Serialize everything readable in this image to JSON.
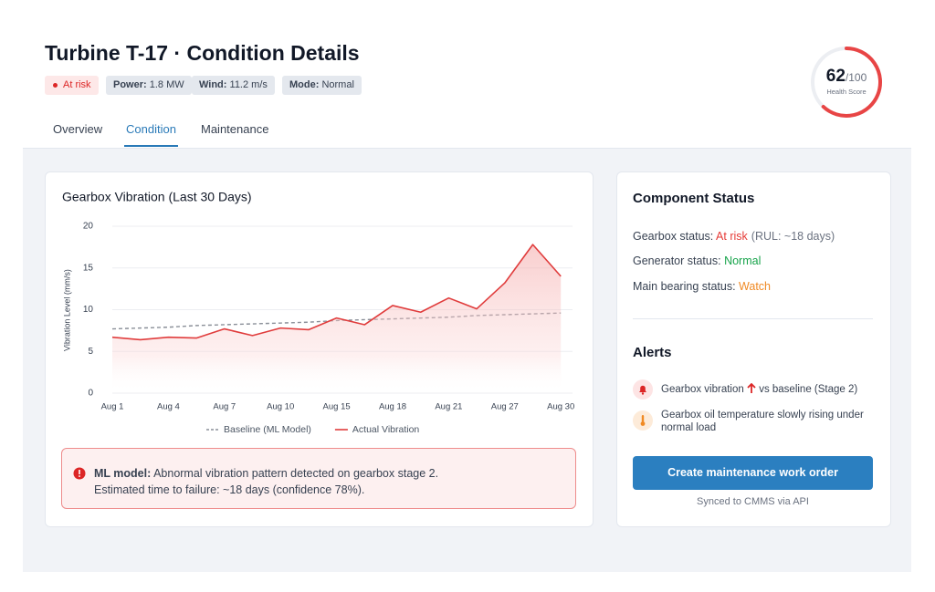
{
  "header": {
    "title": "Turbine T-17 · Condition Details",
    "status_badge": "At risk",
    "badges": [
      {
        "key": "Power:",
        "value": "1.8 MW"
      },
      {
        "key": "Wind:",
        "value": "11.2 m/s"
      },
      {
        "key": "Mode:",
        "value": "Normal"
      }
    ]
  },
  "health": {
    "score": 62,
    "max_label": {
      "value": 100,
      "label": "/100"
    },
    "label": "Health Score"
  },
  "tabs": [
    "Overview",
    "Condition",
    "Maintenance"
  ],
  "active_tab": 1,
  "chart_data": {
    "type": "line",
    "title": "Gearbox Vibration (Last 30 Days)",
    "y_label": "Vibration Level (mm/s)",
    "categories": [
      "Aug 1",
      null,
      "Aug 4",
      null,
      "Aug 7",
      null,
      "Aug 10",
      null,
      "Aug 15",
      null,
      "Aug 18",
      null,
      "Aug 21",
      null,
      "Aug 27",
      null,
      "Aug 30"
    ],
    "series": [
      {
        "name": "Baseline (ML Model)",
        "color": "#8a8f98",
        "dashed": true,
        "values": [
          7.7,
          7.8,
          7.9,
          8.1,
          8.2,
          8.3,
          8.4,
          8.5,
          8.7,
          8.8,
          8.9,
          9.0,
          9.1,
          9.3,
          9.4,
          9.5,
          9.6
        ]
      },
      {
        "name": "Actual Vibration",
        "color": "#e03c3c",
        "fill": true,
        "values": [
          6.7,
          6.4,
          6.7,
          6.6,
          7.7,
          6.9,
          7.8,
          7.6,
          9.0,
          8.2,
          10.5,
          9.7,
          11.4,
          10.1,
          13.2,
          17.8,
          14.0
        ]
      }
    ],
    "ylim": [
      0,
      20
    ],
    "yticks": [
      0,
      5,
      10,
      15,
      20
    ],
    "grid": true
  },
  "ml_alert": {
    "label": "ML model:",
    "message": "Abnormal vibration pattern detected on gearbox stage 2.",
    "detail": "Estimated time to failure: ~18 days (confidence 78%)."
  },
  "components": {
    "title": "Component Status",
    "rows": [
      {
        "label": "Gearbox status:",
        "status": "At risk",
        "color": "#e53935",
        "note": "(RUL: ~18 days)"
      },
      {
        "label": "Generator status:",
        "status": "Normal",
        "color": "#16a34a"
      },
      {
        "label": "Main bearing status:",
        "status": "Watch",
        "color": "#f08a24"
      }
    ]
  },
  "alerts": {
    "title": "Alerts",
    "items": [
      {
        "text_before": "Gearbox vibration",
        "text_after": "vs baseline (Stage 2)"
      },
      {
        "text": "Gearbox oil temperature slowly rising under normal load"
      }
    ]
  },
  "action": {
    "button": "Create maintenance work order",
    "note": "Synced to CMMS via API"
  }
}
